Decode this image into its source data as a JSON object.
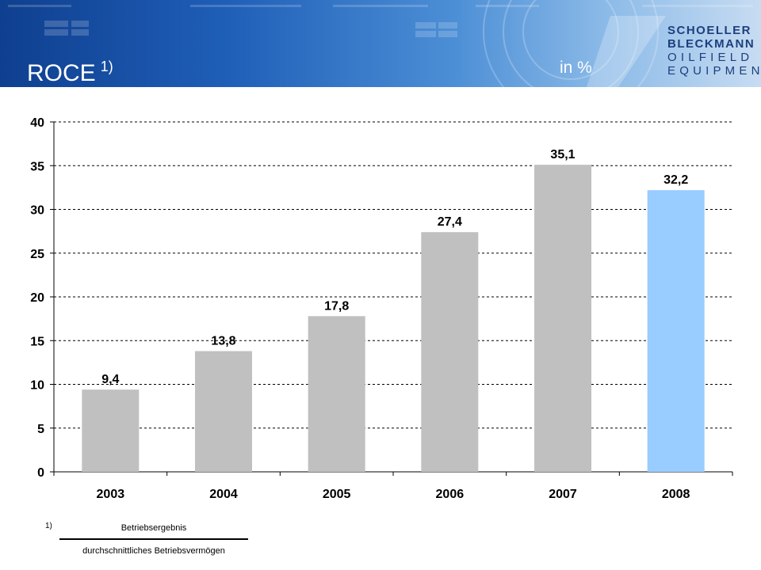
{
  "header": {
    "title": "ROCE",
    "title_footnote": "1)",
    "unit": "in %"
  },
  "logo": {
    "line1": "SCHOELLER",
    "line2": "BLECKMANN",
    "line3": "OILFIELD",
    "line4": "EQUIPMENT",
    "color": "#1d3f7d"
  },
  "chart_data": {
    "type": "bar",
    "categories": [
      "2003",
      "2004",
      "2005",
      "2006",
      "2007",
      "2008"
    ],
    "values": [
      9.4,
      13.8,
      17.8,
      27.4,
      35.1,
      32.2
    ],
    "value_labels": [
      "9,4",
      "13,8",
      "17,8",
      "27,4",
      "35,1",
      "32,2"
    ],
    "bar_colors": [
      "#c0c0c0",
      "#c0c0c0",
      "#c0c0c0",
      "#c0c0c0",
      "#c0c0c0",
      "#99ccff"
    ],
    "ylim": [
      0,
      40
    ],
    "yticks": [
      "0",
      "5",
      "10",
      "15",
      "20",
      "25",
      "30",
      "35",
      "40"
    ],
    "grid": "dashed horizontal",
    "title": "",
    "xlabel": "",
    "ylabel": ""
  },
  "footnote": {
    "mark": "1)",
    "numerator": "Betriebsergebnis",
    "denominator": "durchschnittliches Betriebsvermögen"
  }
}
